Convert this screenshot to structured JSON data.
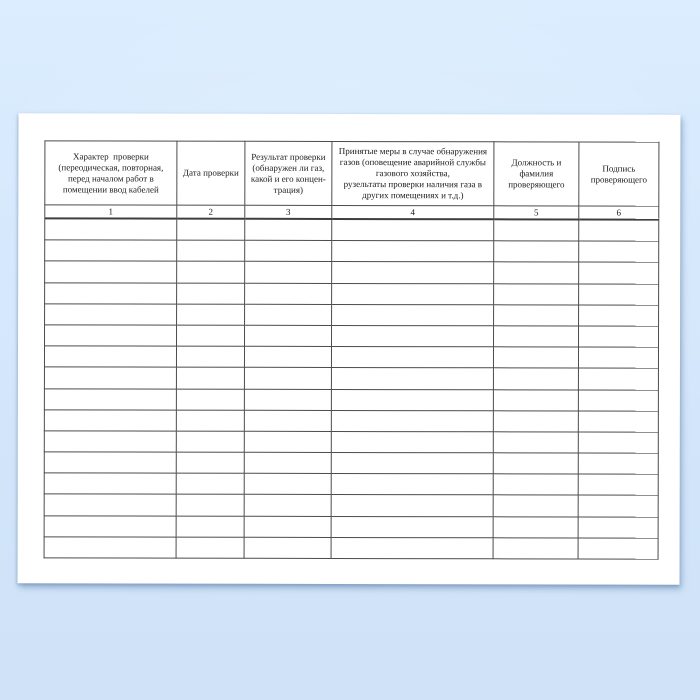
{
  "background_color": "#d3e6fa",
  "paper_color": "#ffffff",
  "table": {
    "border_color": "#4c4c4c",
    "columns": [
      {
        "header": "Характер  проверки\n(переодическая, повторная,\nперед началом работ в\nпомещении ввод кабелей",
        "number": "1"
      },
      {
        "header": "Дата проверки",
        "number": "2"
      },
      {
        "header": "Результат проверки\n(обнаружен ли газ,\nкакой и его концен-\nтрация)",
        "number": "3"
      },
      {
        "header": "Принятые меры в случае обнаружения\nгазов (оповещение аварийной службы\nгазового хозяйства,\nрузельтаты проверки наличия газа в\nдругих помещениях и т.д.)",
        "number": "4"
      },
      {
        "header": "Должность и\nфамилия\nпроверяющего",
        "number": "5"
      },
      {
        "header": "Подпись\nпроверяющего",
        "number": "6"
      }
    ],
    "empty_rows_count": 16
  }
}
